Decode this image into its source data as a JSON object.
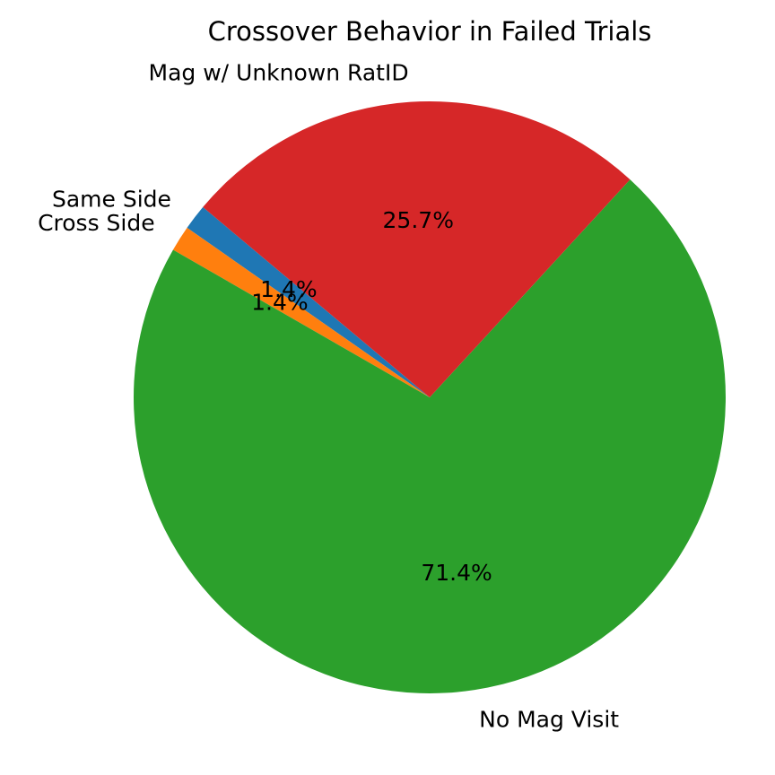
{
  "chart_data": {
    "type": "pie",
    "title": "Crossover Behavior in Failed Trials",
    "slices": [
      {
        "label": "Same Side",
        "value": 1.4,
        "pct_label": "1.4%",
        "color": "#1f77b4"
      },
      {
        "label": "Cross Side",
        "value": 1.4,
        "pct_label": "1.4%",
        "color": "#ff7f0e"
      },
      {
        "label": "No Mag Visit",
        "value": 71.4,
        "pct_label": "71.4%",
        "color": "#2ca02c"
      },
      {
        "label": "Mag w/ Unknown RatID",
        "value": 25.7,
        "pct_label": "25.7%",
        "color": "#d62728"
      }
    ],
    "legend": "none"
  }
}
